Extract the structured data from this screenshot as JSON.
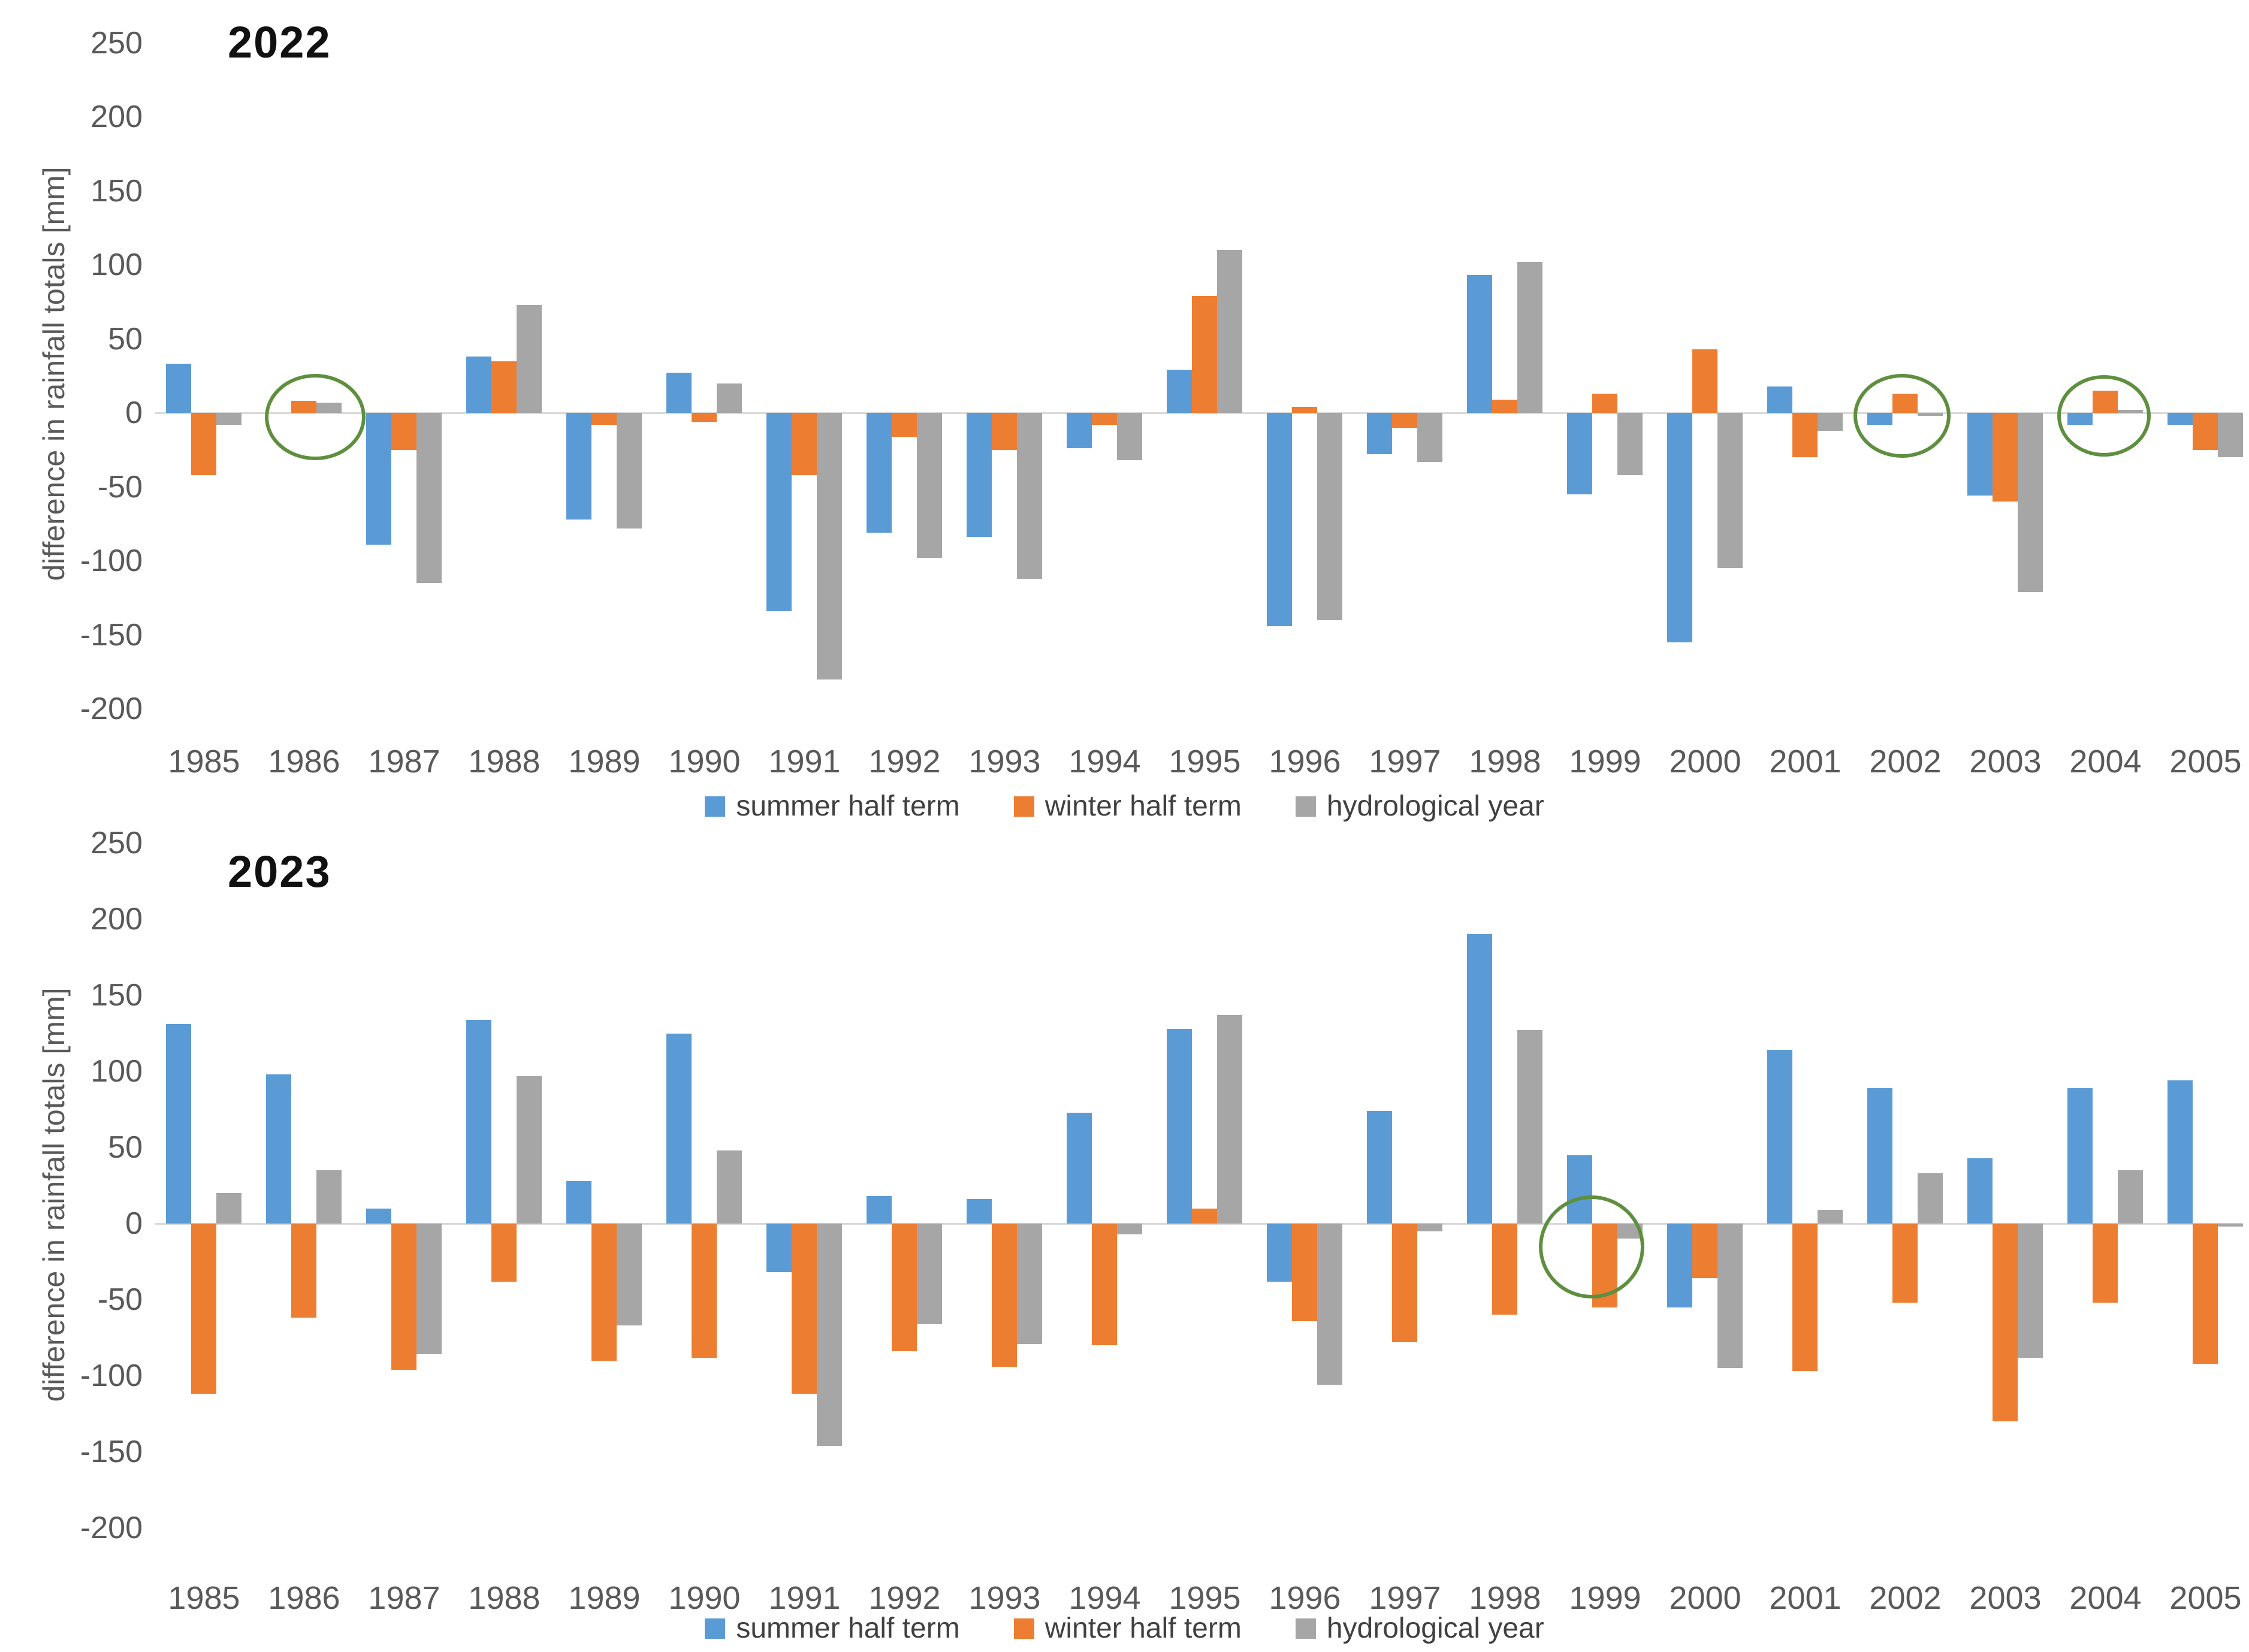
{
  "colors": {
    "summer": "#5B9BD5",
    "winter": "#ED7D31",
    "hydrological": "#A6A6A6",
    "annotation_green": "#5e8f3e",
    "zero_line": "#d9d9d9",
    "axis_text": "#595959",
    "title_text": "#111111"
  },
  "chart_data": [
    {
      "type": "bar",
      "title": "2022",
      "ylabel": "difference in rainfall totals [mm]",
      "ylim": [
        -200,
        250
      ],
      "yticks": [
        250,
        200,
        150,
        100,
        50,
        0,
        -50,
        -100,
        -150,
        -200
      ],
      "grid": "zero-line-only",
      "legend_position": "bottom-center",
      "categories": [
        "1985",
        "1986",
        "1987",
        "1988",
        "1989",
        "1990",
        "1991",
        "1992",
        "1993",
        "1994",
        "1995",
        "1996",
        "1997",
        "1998",
        "1999",
        "2000",
        "2001",
        "2002",
        "2003",
        "2004",
        "2005"
      ],
      "series": [
        {
          "name": "summer half term",
          "color": "#5B9BD5",
          "values": [
            33,
            0,
            -89,
            38,
            -72,
            27,
            -134,
            -81,
            -84,
            -24,
            29,
            -144,
            -28,
            93,
            -55,
            -155,
            18,
            -8,
            -56,
            -8,
            -8
          ]
        },
        {
          "name": "winter half term",
          "color": "#ED7D31",
          "values": [
            -42,
            8,
            -25,
            35,
            -8,
            -6,
            -42,
            -16,
            -25,
            -8,
            79,
            4,
            -10,
            9,
            13,
            43,
            -30,
            13,
            -60,
            15,
            -25
          ]
        },
        {
          "name": "hydrological year",
          "color": "#A6A6A6",
          "values": [
            -8,
            7,
            -115,
            73,
            -78,
            20,
            -180,
            -98,
            -112,
            -32,
            110,
            -140,
            -33,
            102,
            -42,
            -105,
            -12,
            -2,
            -121,
            2,
            -30
          ]
        }
      ],
      "annotations": [
        {
          "label": "green-circle-1986",
          "cx": 520,
          "cy": 690,
          "rx": 78,
          "ry": 66
        },
        {
          "label": "green-circle-2002",
          "cx": 3168,
          "cy": 688,
          "rx": 75,
          "ry": 64
        },
        {
          "label": "green-circle-2004",
          "cx": 3505,
          "cy": 688,
          "rx": 72,
          "ry": 62
        }
      ]
    },
    {
      "type": "bar",
      "title": "2023",
      "ylabel": "difference in rainfall totals [mm]",
      "ylim": [
        -200,
        250
      ],
      "yticks": [
        250,
        200,
        150,
        100,
        50,
        0,
        -50,
        -100,
        -150,
        -200
      ],
      "grid": "zero-line-only",
      "legend_position": "bottom-center",
      "categories": [
        "1985",
        "1986",
        "1987",
        "1988",
        "1989",
        "1990",
        "1991",
        "1992",
        "1993",
        "1994",
        "1995",
        "1996",
        "1997",
        "1998",
        "1999",
        "2000",
        "2001",
        "2002",
        "2003",
        "2004",
        "2005"
      ],
      "series": [
        {
          "name": "summer half term",
          "color": "#5B9BD5",
          "values": [
            131,
            98,
            10,
            134,
            28,
            125,
            -32,
            18,
            16,
            73,
            128,
            -38,
            74,
            190,
            45,
            -55,
            114,
            89,
            43,
            89,
            94
          ]
        },
        {
          "name": "winter half term",
          "color": "#ED7D31",
          "values": [
            -112,
            -62,
            -96,
            -38,
            -90,
            -88,
            -112,
            -84,
            -94,
            -80,
            10,
            -64,
            -78,
            -60,
            -55,
            -36,
            -97,
            -52,
            -130,
            -52,
            -92
          ]
        },
        {
          "name": "hydrological year",
          "color": "#A6A6A6",
          "values": [
            20,
            35,
            -86,
            97,
            -67,
            48,
            -146,
            -66,
            -79,
            -7,
            137,
            -106,
            -5,
            127,
            -10,
            -95,
            9,
            33,
            -88,
            35,
            -2
          ]
        }
      ],
      "annotations": [
        {
          "label": "green-circle-1999",
          "cx": 2650,
          "cy": 2075,
          "rx": 82,
          "ry": 80
        }
      ]
    }
  ]
}
